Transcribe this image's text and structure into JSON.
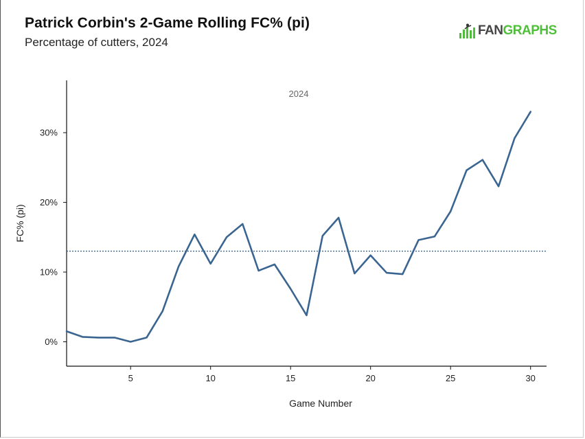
{
  "header": {
    "title": "Patrick Corbin's 2-Game Rolling FC% (pi)",
    "subtitle": "Percentage of cutters, 2024"
  },
  "logo": {
    "text_main": "FAN",
    "text_accent": "GRAPHS",
    "icon": "fangraphs-logo-icon",
    "accent_color": "#4fbf3a"
  },
  "chart_data": {
    "type": "line",
    "title": "Patrick Corbin's 2-Game Rolling FC% (pi)",
    "subtitle": "Percentage of cutters, 2024",
    "xlabel": "Game Number",
    "ylabel": "FC% (pi)",
    "xlim": [
      1,
      31
    ],
    "ylim": [
      -3.5,
      37.5
    ],
    "x_ticks": [
      5,
      10,
      15,
      20,
      25,
      30
    ],
    "y_ticks": [
      0,
      10,
      20,
      30
    ],
    "y_tick_labels": [
      "0%",
      "10%",
      "20%",
      "30%"
    ],
    "facet_label": "2024",
    "reference_line": {
      "value": 13.0,
      "style": "dotted"
    },
    "line_color": "#3a6591",
    "grid": false,
    "series": [
      {
        "x": [
          1,
          2,
          3,
          4,
          5,
          6,
          7,
          8,
          9,
          10,
          11,
          12,
          13,
          14,
          15,
          16,
          17,
          18,
          19,
          20,
          21,
          22,
          23,
          24,
          25,
          26,
          27,
          28,
          29,
          30
        ],
        "values": [
          1.5,
          0.7,
          0.6,
          0.6,
          0.0,
          0.6,
          4.4,
          10.8,
          15.4,
          11.2,
          15.0,
          16.9,
          10.2,
          11.1,
          7.6,
          3.8,
          15.2,
          17.8,
          9.8,
          12.4,
          9.9,
          9.7,
          14.6,
          15.1,
          18.7,
          24.6,
          26.1,
          22.3,
          29.2,
          33.0
        ]
      }
    ]
  }
}
